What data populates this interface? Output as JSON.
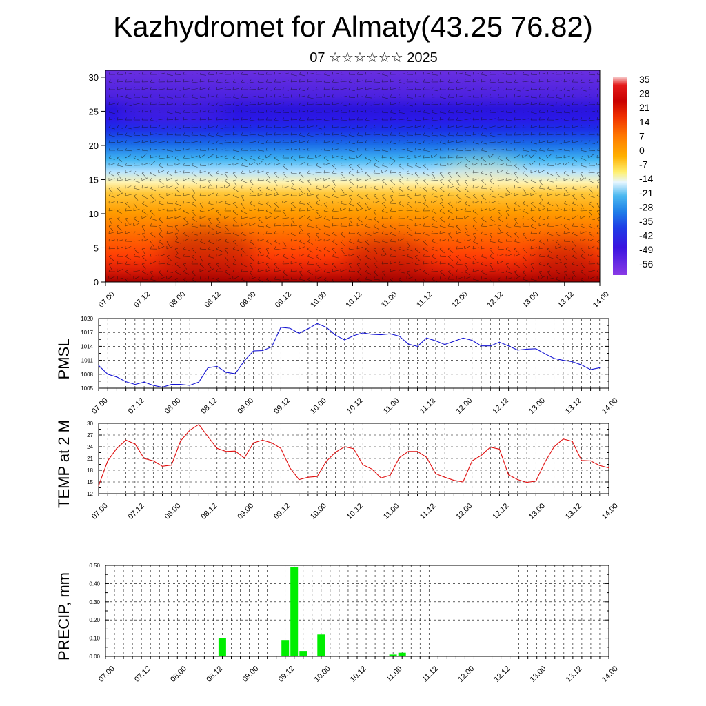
{
  "title": "Kazhydromet for Almaty(43.25 76.82)",
  "subtitle": "07 ☆☆☆☆☆☆ 2025",
  "chart_data": [
    {
      "type": "heatmap",
      "ylim": [
        0,
        31
      ],
      "y_ticks": [
        0,
        5,
        10,
        15,
        20,
        25,
        30
      ],
      "x_tick_labels": [
        "07.00",
        "07.12",
        "08.00",
        "08.12",
        "09.00",
        "09.12",
        "10.00",
        "10.12",
        "11.00",
        "11.12",
        "12.00",
        "12.12",
        "13.00",
        "13.12",
        "14.00"
      ],
      "colorbar_labels": [
        "35",
        "28",
        "21",
        "14",
        "7",
        "0",
        "-7",
        "-14",
        "-21",
        "-28",
        "-35",
        "-42",
        "-49",
        "-56"
      ],
      "overlay": "wind barbs",
      "grid": false
    },
    {
      "type": "line",
      "ylabel": "PMSL",
      "ylim": [
        1005,
        1020
      ],
      "y_ticks": [
        1005,
        1008,
        1011,
        1014,
        1017,
        1020
      ],
      "x_tick_labels": [
        "07.00",
        "07.12",
        "08.00",
        "08.12",
        "09.00",
        "09.12",
        "10.00",
        "10.12",
        "11.00",
        "11.12",
        "12.00",
        "12.12",
        "13.00",
        "13.12",
        "14.00"
      ],
      "x_step_hours": 3,
      "color": "#1414d2",
      "grid": true,
      "values": [
        1009.9,
        1008.0,
        1007.4,
        1006.4,
        1005.8,
        1006.3,
        1005.6,
        1005.2,
        1005.8,
        1005.8,
        1005.6,
        1006.3,
        1009.4,
        1009.7,
        1008.4,
        1008.1,
        1010.9,
        1013.0,
        1013.1,
        1013.9,
        1018.1,
        1017.9,
        1016.8,
        1017.8,
        1018.9,
        1018.1,
        1016.4,
        1015.4,
        1016.3,
        1016.9,
        1016.6,
        1016.5,
        1016.7,
        1016.2,
        1014.5,
        1014.0,
        1015.8,
        1015.2,
        1014.4,
        1015.1,
        1015.8,
        1015.3,
        1014.1,
        1014.1,
        1014.9,
        1014.1,
        1013.2,
        1013.4,
        1013.5,
        1012.4,
        1011.4,
        1011.0,
        1010.7,
        1010.0,
        1009.0,
        1009.4
      ]
    },
    {
      "type": "line",
      "ylabel": "TEMP at 2 M",
      "ylim": [
        12,
        30
      ],
      "y_ticks": [
        12,
        15,
        18,
        21,
        24,
        27,
        30
      ],
      "x_tick_labels": [
        "07.00",
        "07.12",
        "08.00",
        "08.12",
        "09.00",
        "09.12",
        "10.00",
        "10.12",
        "11.00",
        "11.12",
        "12.00",
        "12.12",
        "13.00",
        "13.12",
        "14.00"
      ],
      "x_step_hours": 3,
      "color": "#e01010",
      "grid": true,
      "values": [
        14.0,
        20.4,
        23.6,
        25.7,
        24.7,
        21.0,
        20.4,
        19.0,
        19.3,
        25.5,
        28.2,
        29.7,
        26.6,
        23.6,
        22.8,
        22.9,
        21.1,
        25.0,
        25.7,
        25.0,
        23.6,
        18.6,
        15.6,
        16.2,
        16.4,
        20.3,
        22.6,
        24.0,
        23.5,
        19.4,
        18.3,
        16.0,
        16.7,
        21.2,
        22.8,
        22.8,
        21.3,
        17.1,
        16.2,
        15.4,
        15.0,
        20.4,
        21.8,
        23.9,
        23.4,
        16.8,
        15.6,
        14.9,
        15.2,
        20.1,
        24.0,
        26.0,
        25.4,
        20.5,
        20.4,
        19.2,
        18.6
      ]
    },
    {
      "type": "bar",
      "ylabel": "PRECIP, mm",
      "ylim": [
        0,
        0.5
      ],
      "y_tick_labels": [
        "0.00",
        "0.10",
        "0.20",
        "0.30",
        "0.40",
        "0.50"
      ],
      "x_tick_labels": [
        "07.00",
        "07.12",
        "08.00",
        "08.12",
        "09.00",
        "09.12",
        "10.00",
        "10.12",
        "11.00",
        "11.12",
        "12.00",
        "12.12",
        "13.00",
        "13.12",
        "14.00"
      ],
      "x_step_hours": 3,
      "color": "#00ee00",
      "grid": true,
      "values": [
        0,
        0,
        0,
        0,
        0,
        0,
        0,
        0,
        0,
        0,
        0,
        0,
        0,
        0.1,
        0,
        0,
        0,
        0,
        0,
        0,
        0.09,
        0.49,
        0.03,
        0,
        0.12,
        0,
        0,
        0,
        0,
        0,
        0,
        0,
        0.01,
        0.02,
        0,
        0,
        0,
        0,
        0,
        0,
        0,
        0,
        0,
        0,
        0,
        0,
        0,
        0,
        0,
        0,
        0,
        0,
        0,
        0,
        0,
        0
      ]
    }
  ]
}
